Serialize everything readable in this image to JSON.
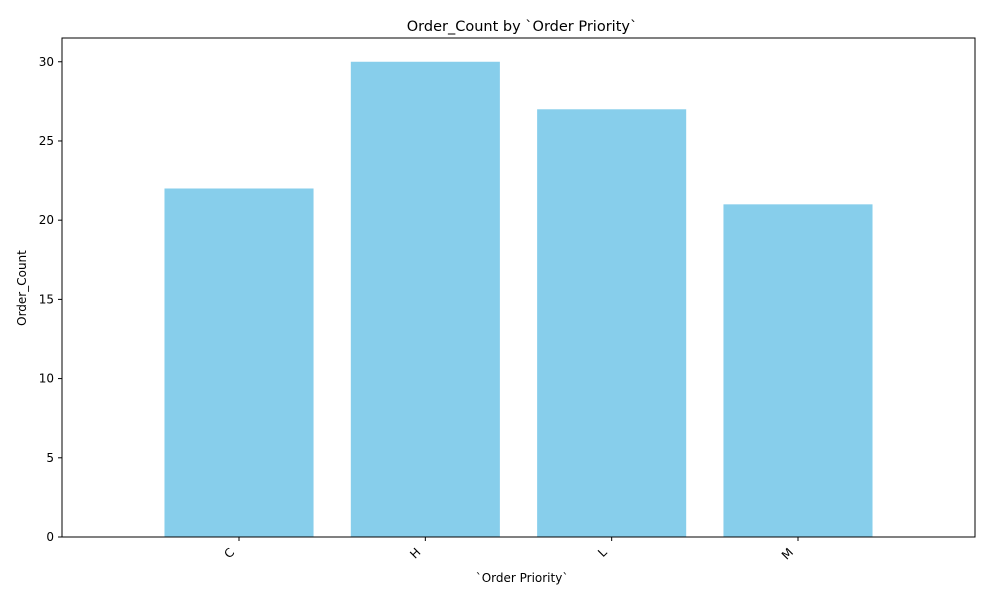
{
  "chart_data": {
    "type": "bar",
    "title": "Order_Count by `Order Priority`",
    "xlabel": "`Order Priority`",
    "ylabel": "Order_Count",
    "categories": [
      "C",
      "H",
      "L",
      "M"
    ],
    "values": [
      22,
      30,
      27,
      21
    ],
    "ylim": [
      0,
      31.5
    ],
    "yticks": [
      0,
      5,
      10,
      15,
      20,
      25,
      30
    ],
    "bar_color": "#87CEEB",
    "grid": false,
    "legend": "none"
  }
}
